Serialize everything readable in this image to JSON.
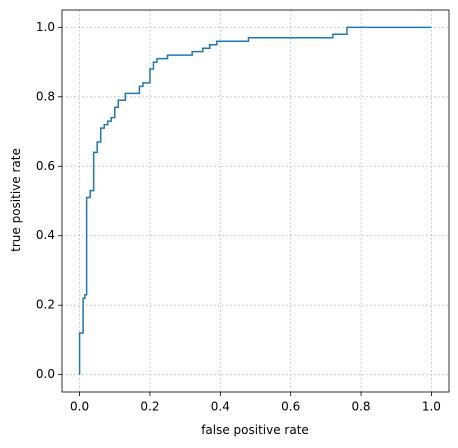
{
  "chart_data": {
    "type": "line",
    "xlabel": "false positive rate",
    "ylabel": "true positive rate",
    "x": [
      0,
      0,
      0.01,
      0.01,
      0.015,
      0.015,
      0.02,
      0.02,
      0.03,
      0.03,
      0.04,
      0.04,
      0.05,
      0.05,
      0.06,
      0.06,
      0.07,
      0.07,
      0.08,
      0.08,
      0.09,
      0.09,
      0.1,
      0.1,
      0.11,
      0.11,
      0.13,
      0.13,
      0.17,
      0.17,
      0.18,
      0.18,
      0.2,
      0.2,
      0.21,
      0.21,
      0.22,
      0.22,
      0.25,
      0.25,
      0.32,
      0.32,
      0.35,
      0.35,
      0.37,
      0.37,
      0.39,
      0.39,
      0.48,
      0.48,
      0.72,
      0.72,
      0.76,
      0.76,
      1.0
    ],
    "values": [
      0,
      0.12,
      0.12,
      0.22,
      0.22,
      0.23,
      0.23,
      0.51,
      0.51,
      0.53,
      0.53,
      0.64,
      0.64,
      0.67,
      0.67,
      0.71,
      0.71,
      0.72,
      0.72,
      0.73,
      0.73,
      0.74,
      0.74,
      0.77,
      0.77,
      0.79,
      0.79,
      0.81,
      0.81,
      0.83,
      0.83,
      0.84,
      0.84,
      0.88,
      0.88,
      0.9,
      0.9,
      0.91,
      0.91,
      0.92,
      0.92,
      0.93,
      0.93,
      0.94,
      0.94,
      0.95,
      0.95,
      0.96,
      0.96,
      0.97,
      0.97,
      0.98,
      0.98,
      1.0,
      1.0
    ],
    "color": "#1f77b4",
    "xlim": [
      -0.05,
      1.05
    ],
    "ylim": [
      -0.05,
      1.05
    ],
    "xticks": [
      {
        "value": 0,
        "label": "0.0"
      },
      {
        "value": 0.2,
        "label": "0.2"
      },
      {
        "value": 0.4,
        "label": "0.4"
      },
      {
        "value": 0.6,
        "label": "0.6"
      },
      {
        "value": 0.8,
        "label": "0.8"
      },
      {
        "value": 1,
        "label": "1.0"
      }
    ],
    "yticks": [
      {
        "value": 0,
        "label": "0.0"
      },
      {
        "value": 0.2,
        "label": "0.2"
      },
      {
        "value": 0.4,
        "label": "0.4"
      },
      {
        "value": 0.6,
        "label": "0.6"
      },
      {
        "value": 0.8,
        "label": "0.8"
      },
      {
        "value": 1,
        "label": "1.0"
      }
    ],
    "grid": true
  }
}
